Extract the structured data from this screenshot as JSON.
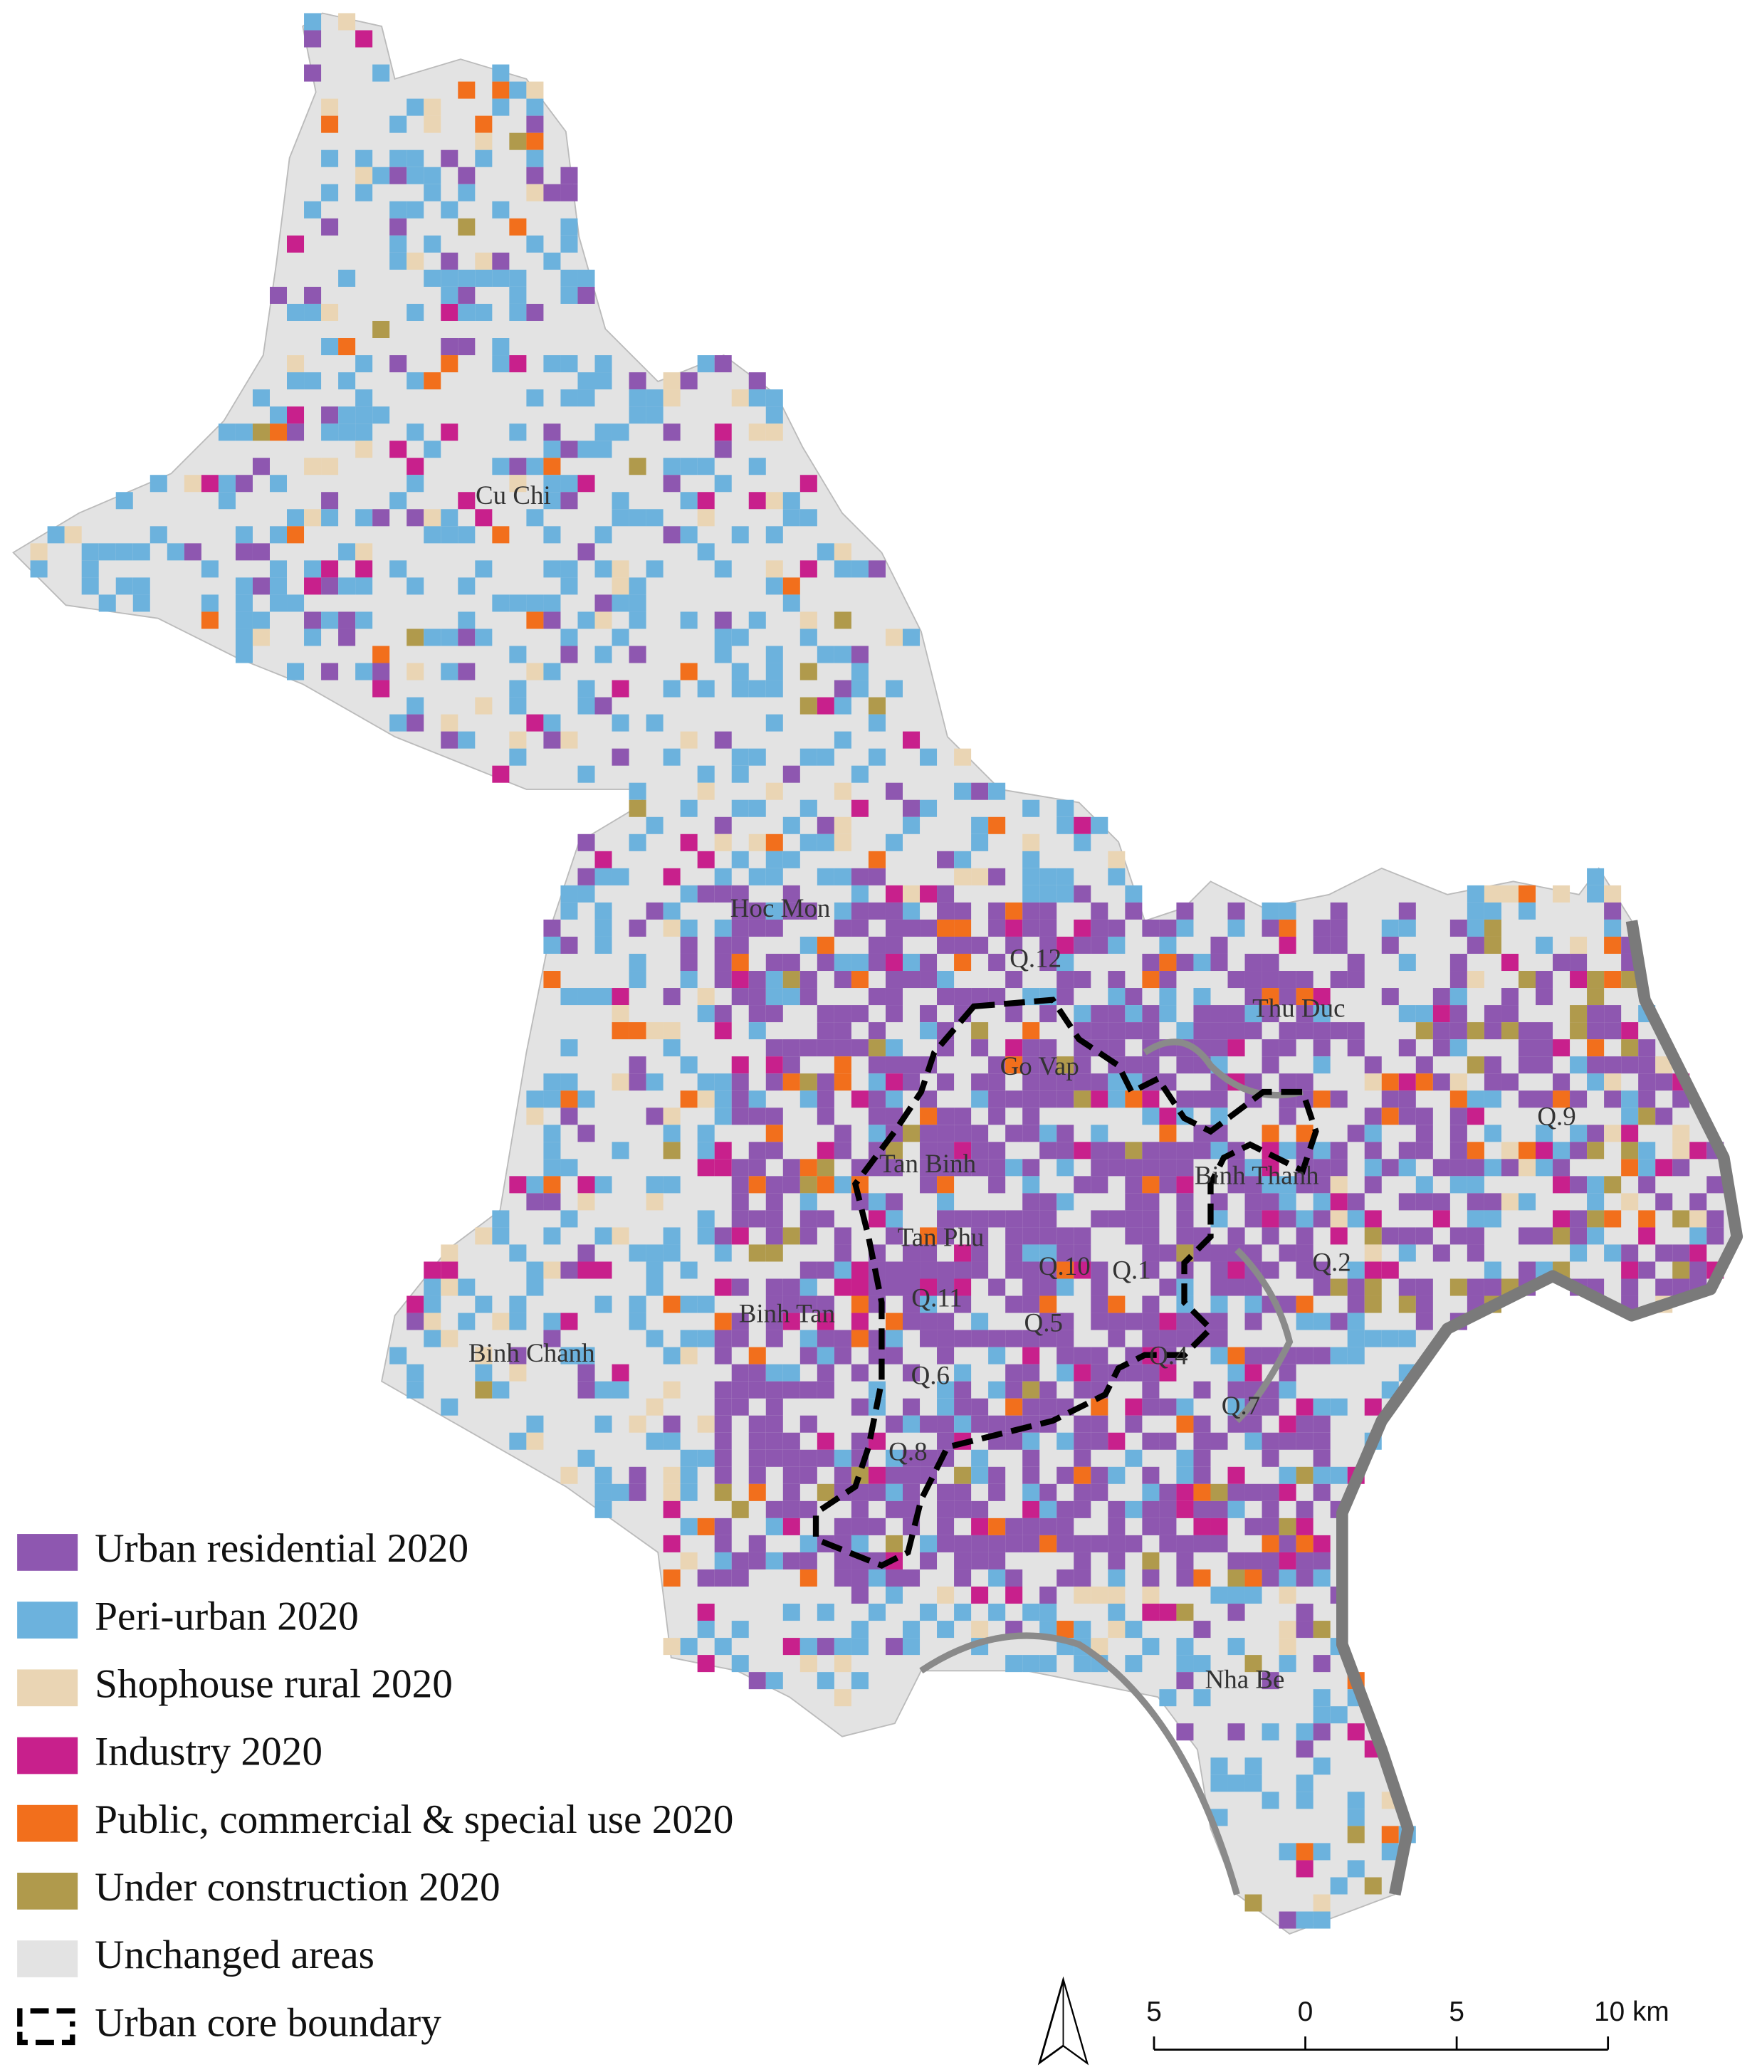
{
  "districts": [
    "Cu Chi",
    "Hoc Mon",
    "Q.12",
    "Thu Duc",
    "Go Vap",
    "Q.9",
    "Tan Binh",
    "Binh Thanh",
    "Tan Phu",
    "Q.10",
    "Q.1",
    "Q.2",
    "Binh Tan",
    "Q.11",
    "Q.5",
    "Binh Chanh",
    "Q.4",
    "Q.6",
    "Q.7",
    "Q.8",
    "Nha Be"
  ],
  "legend": [
    {
      "label": "Urban residential 2020",
      "color": "#8e57b0"
    },
    {
      "label": "Peri-urban 2020",
      "color": "#6cb2dd"
    },
    {
      "label": "Shophouse rural 2020",
      "color": "#ead5b4"
    },
    {
      "label": "Industry 2020",
      "color": "#c8208c"
    },
    {
      "label": "Public, commercial & special use 2020",
      "color": "#f26f1c"
    },
    {
      "label": "Under construction 2020",
      "color": "#b09a4c"
    },
    {
      "label": "Unchanged areas",
      "color": "#e3e3e3"
    },
    {
      "label": "Urban core boundary"
    }
  ],
  "scale_bar": [
    "5",
    "0",
    "5",
    "10 km"
  ]
}
